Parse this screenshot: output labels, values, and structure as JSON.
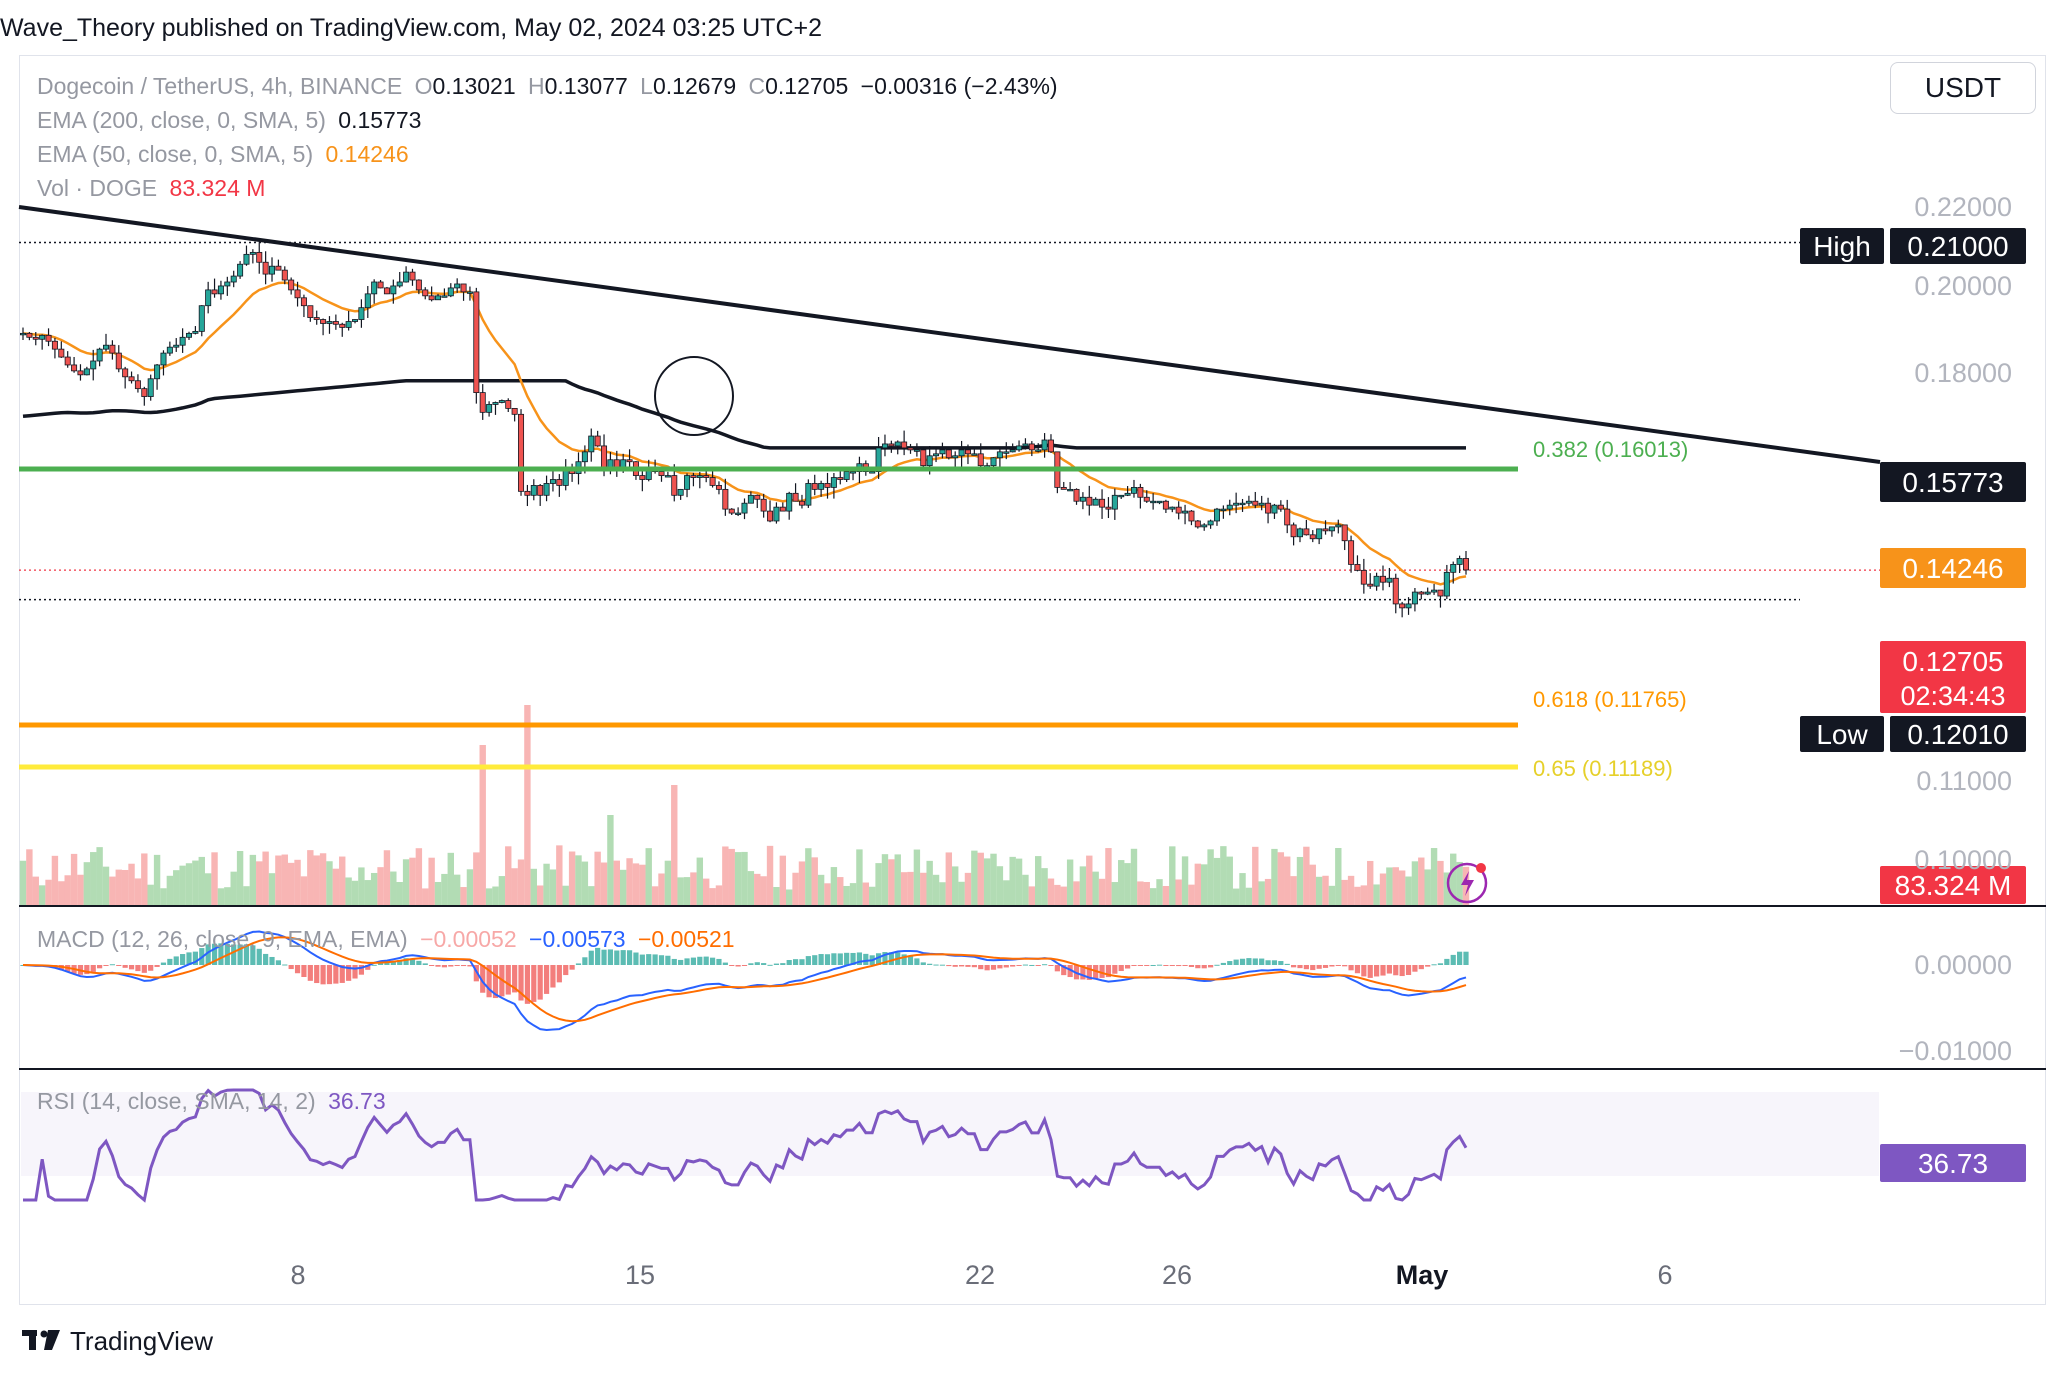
{
  "header": {
    "publisher_line": "Wave_Theory published on TradingView.com, May 02, 2024 03:25 UTC+2"
  },
  "toolbar": {
    "currency_button": "USDT"
  },
  "legend": {
    "symbol": "Dogecoin / TetherUS, 4h, BINANCE",
    "open_label": "O",
    "open": "0.13021",
    "high_label": "H",
    "high": "0.13077",
    "low_label": "L",
    "low": "0.12679",
    "close_label": "C",
    "close": "0.12705",
    "change": "−0.00316 (−2.43%)",
    "ema200_label": "EMA (200, close, 0, SMA, 5)",
    "ema200_value": "0.15773",
    "ema50_label": "EMA (50, close, 0, SMA, 5)",
    "ema50_value": "0.14246",
    "vol_label": "Vol · DOGE",
    "vol_value": "83.324 M",
    "macd_label": "MACD (12, 26, close, 9, EMA, EMA)",
    "macd_hist": "−0.00052",
    "macd_line": "−0.00573",
    "macd_signal": "−0.00521",
    "rsi_label": "RSI (14, close, SMA, 14, 2)",
    "rsi_value": "36.73"
  },
  "colors": {
    "up": "#26a69a",
    "down": "#ef5350",
    "ema50": "#f7931a",
    "ema200": "#131722",
    "fib382": "#4caf50",
    "fib618": "#ff9800",
    "fib65": "#ffeb3b",
    "macd": "#2962ff",
    "signal": "#ff6d00",
    "rsi": "#7e57c2"
  },
  "chart_data": {
    "type": "candlestick",
    "symbol": "DOGEUSDT",
    "timeframe": "4h",
    "price_axis": {
      "ticks": [
        "0.22000",
        "0.20000",
        "0.18000",
        "0.11000",
        "0.10000"
      ]
    },
    "time_axis": {
      "labels": [
        "8",
        "15",
        "22",
        "26",
        "May",
        "6"
      ]
    },
    "price_labels": {
      "high_tag": "High",
      "high_value": "0.21000",
      "ema200_tag": "0.15773",
      "ema50_tag": "0.14246",
      "last_price": "0.12705",
      "countdown": "02:34:43",
      "low_tag": "Low",
      "low_value": "0.12010",
      "volume_tag": "83.324 M",
      "macd_zero": "0.00000",
      "macd_neg": "−0.01000",
      "rsi_tag": "36.73"
    },
    "fib_levels": [
      {
        "label": "0.382 (0.16013)",
        "value": 0.16013
      },
      {
        "label": "0.618 (0.11765)",
        "value": 0.11765
      },
      {
        "label": "0.65 (0.11189)",
        "value": 0.11189
      }
    ],
    "high": 0.21,
    "low": 0.1201,
    "last": 0.12705,
    "close_path": [
      0.187,
      0.186,
      0.1855,
      0.1865,
      0.185,
      0.183,
      0.181,
      0.179,
      0.1775,
      0.1765,
      0.178,
      0.18,
      0.183,
      0.184,
      0.182,
      0.178,
      0.176,
      0.175,
      0.173,
      0.171,
      0.1755,
      0.179,
      0.182,
      0.1835,
      0.184,
      0.186,
      0.187,
      0.1875,
      0.194,
      0.198,
      0.197,
      0.199,
      0.2,
      0.2015,
      0.2045,
      0.207,
      0.2075,
      0.205,
      0.202,
      0.204,
      0.203,
      0.2005,
      0.198,
      0.196,
      0.194,
      0.191,
      0.1905,
      0.1895,
      0.19,
      0.1893,
      0.1885,
      0.19,
      0.1905,
      0.1935,
      0.197,
      0.2,
      0.1985,
      0.197,
      0.199,
      0.2,
      0.2025,
      0.2005,
      0.198,
      0.1965,
      0.1955,
      0.1965,
      0.1965,
      0.1985,
      0.1995,
      0.1975,
      0.1975,
      0.172,
      0.167,
      0.169,
      0.1695,
      0.17,
      0.168,
      0.1665,
      0.147,
      0.146,
      0.1485,
      0.146,
      0.149,
      0.15,
      0.1485,
      0.1525,
      0.1515,
      0.1545,
      0.157,
      0.161,
      0.1585,
      0.1525,
      0.155,
      0.153,
      0.155,
      0.1545,
      0.151,
      0.15,
      0.153,
      0.152,
      0.151,
      0.151,
      0.146,
      0.1475,
      0.151,
      0.1505,
      0.151,
      0.1505,
      0.1485,
      0.1475,
      0.1425,
      0.1415,
      0.1415,
      0.144,
      0.146,
      0.145,
      0.142,
      0.1395,
      0.143,
      0.142,
      0.1465,
      0.1445,
      0.1435,
      0.149,
      0.1475,
      0.149,
      0.148,
      0.1505,
      0.15,
      0.152,
      0.152,
      0.154,
      0.152,
      0.152,
      0.158,
      0.159,
      0.1585,
      0.1595,
      0.158,
      0.1575,
      0.1575,
      0.1535,
      0.156,
      0.1565,
      0.1575,
      0.1555,
      0.156,
      0.1575,
      0.1565,
      0.1565,
      0.1535,
      0.1535,
      0.1555,
      0.157,
      0.157,
      0.1575,
      0.1585,
      0.159,
      0.1575,
      0.1575,
      0.16,
      0.157,
      0.148,
      0.1475,
      0.1475,
      0.1445,
      0.1455,
      0.1435,
      0.145,
      0.143,
      0.1425,
      0.146,
      0.146,
      0.1465,
      0.148,
      0.1455,
      0.1445,
      0.1445,
      0.1445,
      0.1425,
      0.143,
      0.1415,
      0.142,
      0.1395,
      0.138,
      0.1385,
      0.1395,
      0.1425,
      0.1425,
      0.1435,
      0.144,
      0.144,
      0.1445,
      0.1435,
      0.144,
      0.1415,
      0.1435,
      0.1425,
      0.1385,
      0.1355,
      0.1375,
      0.136,
      0.135,
      0.1375,
      0.137,
      0.138,
      0.1385,
      0.1345,
      0.1285,
      0.127,
      0.1235,
      0.123,
      0.1255,
      0.124,
      0.125,
      0.1185,
      0.1175,
      0.1185,
      0.1215,
      0.121,
      0.1215,
      0.122,
      0.1205,
      0.1265,
      0.1285,
      0.13,
      0.1271
    ]
  }
}
